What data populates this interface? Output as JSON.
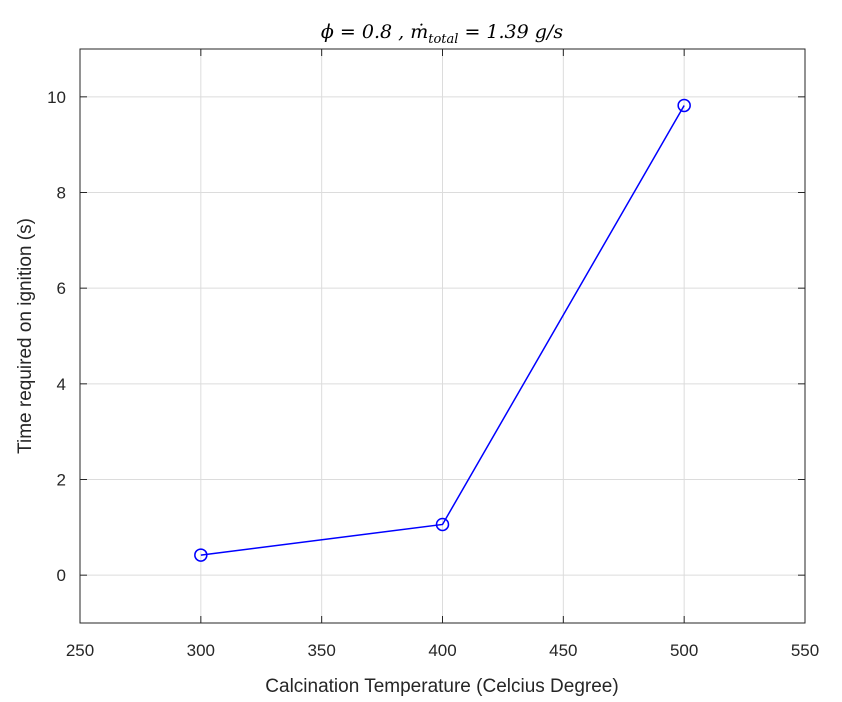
{
  "chart_data": {
    "type": "line",
    "title": "ϕ = 0.8 , ṁ_total = 1.39 g/s",
    "title_parts": {
      "main": "ϕ = 0.8 , ṁ",
      "subscript": "total",
      "tail": " = 1.39 g/s"
    },
    "xlabel": "Calcination Temperature (Celcius Degree)",
    "ylabel": "Time required on ignition (s)",
    "xlim": [
      250,
      550
    ],
    "ylim": [
      -1,
      11
    ],
    "x_ticks": [
      250,
      300,
      350,
      400,
      450,
      500,
      550
    ],
    "y_ticks": [
      0,
      2,
      4,
      6,
      8,
      10
    ],
    "grid": true,
    "series": [
      {
        "marker": "circle",
        "color": "#0000ff",
        "x": [
          300,
          400,
          500
        ],
        "y": [
          0.42,
          1.06,
          9.82
        ]
      }
    ]
  }
}
